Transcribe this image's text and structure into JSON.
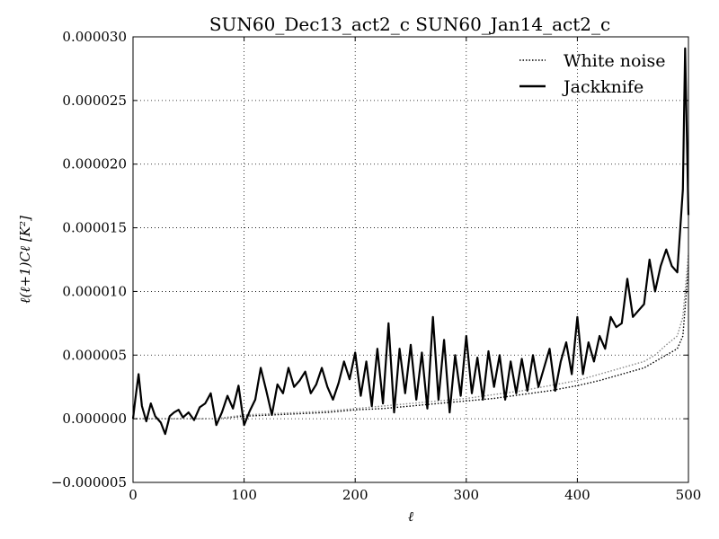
{
  "chart_data": {
    "type": "line",
    "title": "SUN60_Dec13_act2_c SUN60_Jan14_act2_c",
    "xlabel": "ℓ",
    "ylabel": "ℓ(ℓ+1)Cℓ [K²]",
    "xlim": [
      0,
      500
    ],
    "ylim": [
      -5e-06,
      3e-05
    ],
    "xticks": [
      0,
      100,
      200,
      300,
      400,
      500
    ],
    "xtick_labels": [
      "0",
      "100",
      "200",
      "300",
      "400",
      "500"
    ],
    "yticks": [
      -5e-06,
      0,
      5e-06,
      1e-05,
      1.5e-05,
      2e-05,
      2.5e-05,
      3e-05
    ],
    "ytick_labels": [
      "−0.000005",
      "0.000000",
      "0.000005",
      "0.000010",
      "0.000015",
      "0.000020",
      "0.000025",
      "0.000030"
    ],
    "grid": true,
    "legend_position": "top-right",
    "series": [
      {
        "name": "White noise",
        "style": "dotted",
        "color": "#000000",
        "x": [
          0,
          25,
          50,
          75,
          100,
          125,
          150,
          175,
          200,
          225,
          250,
          275,
          300,
          325,
          350,
          375,
          400,
          420,
          440,
          460,
          470,
          480,
          490,
          495,
          500
        ],
        "y": [
          0.0,
          0.0,
          0.0,
          0.0,
          2e-07,
          3e-07,
          4e-07,
          5e-07,
          7e-07,
          8e-07,
          1e-06,
          1.2e-06,
          1.4e-06,
          1.6e-06,
          1.9e-06,
          2.2e-06,
          2.6e-06,
          3e-06,
          3.5e-06,
          4e-06,
          4.5e-06,
          5e-06,
          5.5e-06,
          6.5e-06,
          1.2e-05
        ]
      },
      {
        "name": "",
        "style": "dotted",
        "color": "#888888",
        "x": [
          0,
          25,
          50,
          75,
          100,
          125,
          150,
          175,
          200,
          225,
          250,
          275,
          300,
          325,
          350,
          375,
          400,
          420,
          440,
          460,
          470,
          480,
          490,
          495,
          500
        ],
        "y": [
          0.0,
          0.0,
          0.0,
          0.0,
          3e-07,
          4e-07,
          5e-07,
          6e-07,
          8e-07,
          1e-06,
          1.2e-06,
          1.4e-06,
          1.6e-06,
          1.9e-06,
          2.2e-06,
          2.6e-06,
          3e-06,
          3.5e-06,
          4e-06,
          4.5e-06,
          5e-06,
          5.8e-06,
          6.5e-06,
          8e-06,
          1.3e-05
        ]
      },
      {
        "name": "Jackknife",
        "style": "solid",
        "color": "#000000",
        "x": [
          0,
          2,
          5,
          8,
          12,
          16,
          20,
          25,
          29,
          33,
          37,
          41,
          45,
          50,
          55,
          60,
          65,
          70,
          75,
          80,
          85,
          90,
          95,
          100,
          105,
          110,
          115,
          120,
          125,
          130,
          135,
          140,
          145,
          150,
          155,
          160,
          165,
          170,
          175,
          180,
          185,
          190,
          195,
          200,
          205,
          210,
          215,
          220,
          225,
          230,
          235,
          240,
          245,
          250,
          255,
          260,
          265,
          270,
          275,
          280,
          285,
          290,
          295,
          300,
          305,
          310,
          315,
          320,
          325,
          330,
          335,
          340,
          345,
          350,
          355,
          360,
          365,
          370,
          375,
          380,
          385,
          390,
          395,
          400,
          405,
          410,
          415,
          420,
          425,
          430,
          435,
          440,
          445,
          450,
          455,
          460,
          465,
          470,
          475,
          480,
          485,
          490,
          495,
          497,
          500
        ],
        "y": [
          0.0,
          1.5e-06,
          3.5e-06,
          1e-06,
          -2e-07,
          1.2e-06,
          2e-07,
          -3e-07,
          -1.2e-06,
          2e-07,
          5e-07,
          7e-07,
          1e-07,
          5e-07,
          -1e-07,
          9e-07,
          1.2e-06,
          2e-06,
          -5e-07,
          5e-07,
          1.8e-06,
          8e-07,
          2.6e-06,
          -5e-07,
          6e-07,
          1.5e-06,
          4e-06,
          2.2e-06,
          3e-07,
          2.7e-06,
          2e-06,
          4e-06,
          2.5e-06,
          3e-06,
          3.7e-06,
          2e-06,
          2.7e-06,
          4e-06,
          2.5e-06,
          1.5e-06,
          2.8e-06,
          4.5e-06,
          3.1e-06,
          5.2e-06,
          1.8e-06,
          4.5e-06,
          1e-06,
          5.5e-06,
          1.2e-06,
          7.5e-06,
          5e-07,
          5.5e-06,
          2e-06,
          5.8e-06,
          1.5e-06,
          5.2e-06,
          8e-07,
          8e-06,
          1.5e-06,
          6.2e-06,
          5e-07,
          5e-06,
          1.8e-06,
          6.5e-06,
          2e-06,
          4.8e-06,
          1.5e-06,
          5.3e-06,
          2.5e-06,
          5e-06,
          1.5e-06,
          4.5e-06,
          2e-06,
          4.7e-06,
          2.2e-06,
          5e-06,
          2.5e-06,
          4e-06,
          5.5e-06,
          2.2e-06,
          4.5e-06,
          6e-06,
          3.5e-06,
          8e-06,
          3.5e-06,
          6e-06,
          4.5e-06,
          6.5e-06,
          5.5e-06,
          8e-06,
          7.2e-06,
          7.5e-06,
          1.1e-05,
          8e-06,
          8.5e-06,
          9e-06,
          1.25e-05,
          1e-05,
          1.2e-05,
          1.33e-05,
          1.2e-05,
          1.15e-05,
          1.8e-05,
          2.91e-05,
          1.6e-05
        ]
      }
    ]
  }
}
